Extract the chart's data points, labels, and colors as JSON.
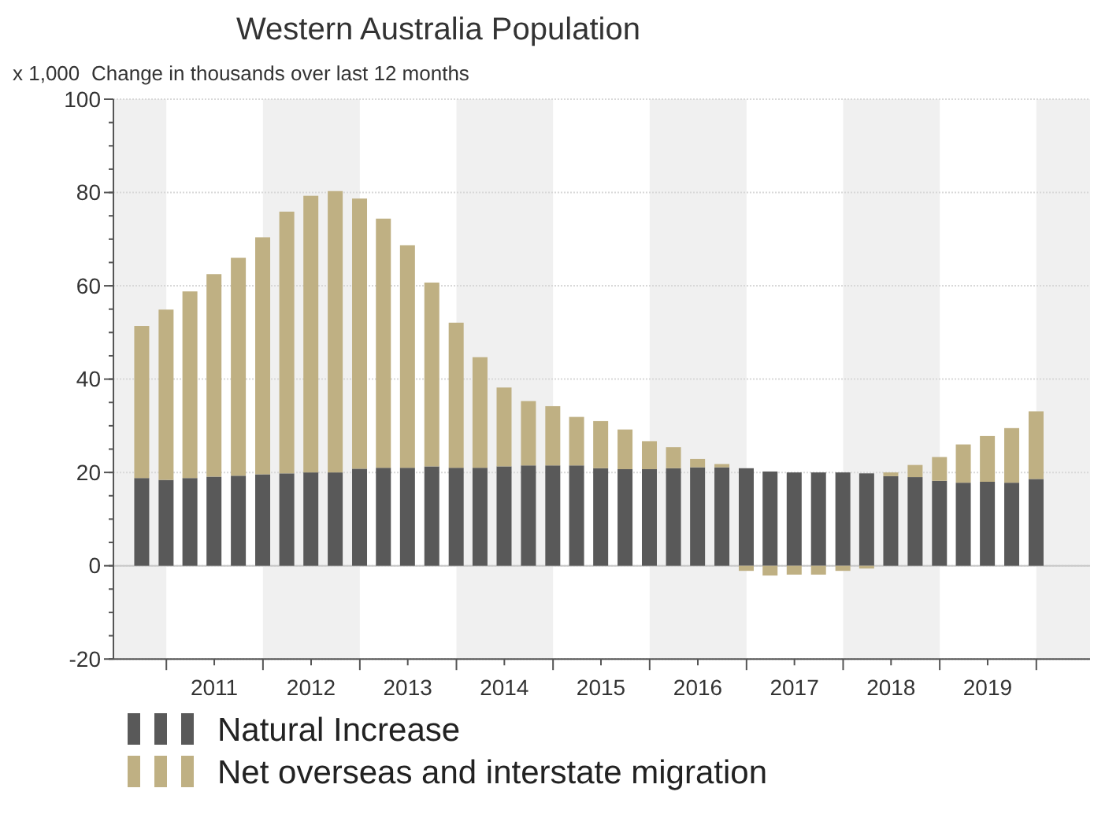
{
  "chart_data": {
    "type": "bar",
    "title": "Western Australia Population",
    "subtitle": "Change in thousands over last 12 months",
    "ylabel": "x 1,000",
    "stacked": true,
    "x": [
      "2010-09-30",
      "2010-12-31",
      "2011-03-31",
      "2011-06-30",
      "2011-09-30",
      "2011-12-31",
      "2012-03-31",
      "2012-06-30",
      "2012-09-30",
      "2012-12-31",
      "2013-03-31",
      "2013-06-30",
      "2013-09-30",
      "2013-12-31",
      "2014-03-31",
      "2014-06-30",
      "2014-09-30",
      "2014-12-31",
      "2015-03-31",
      "2015-06-30",
      "2015-09-30",
      "2015-12-31",
      "2016-03-31",
      "2016-06-30",
      "2016-09-30",
      "2016-12-31",
      "2017-03-31",
      "2017-06-30",
      "2017-09-30",
      "2017-12-31",
      "2018-03-31",
      "2018-06-30",
      "2018-09-30",
      "2018-12-31",
      "2019-03-31",
      "2019-06-30",
      "2019-09-30",
      "2019-12-31"
    ],
    "series": [
      {
        "name": "Natural Increase",
        "color": "#595959",
        "values": [
          18.8,
          18.4,
          18.8,
          19.1,
          19.3,
          19.6,
          19.8,
          20.0,
          20.0,
          20.8,
          21.0,
          21.0,
          21.3,
          21.0,
          21.0,
          21.3,
          21.5,
          21.5,
          21.5,
          20.9,
          20.7,
          20.7,
          20.9,
          21.1,
          21.1,
          20.9,
          20.2,
          20.0,
          20.0,
          20.0,
          19.8,
          19.2,
          19.0,
          18.2,
          17.8,
          18.0,
          17.8,
          18.6
        ]
      },
      {
        "name": "Net overseas and interstate migration",
        "color": "#bfb083",
        "values": [
          32.6,
          36.5,
          40.0,
          43.4,
          46.7,
          50.8,
          56.1,
          59.3,
          60.3,
          57.9,
          53.4,
          47.7,
          39.4,
          31.1,
          23.7,
          16.9,
          13.8,
          12.7,
          10.4,
          10.1,
          8.5,
          6.0,
          4.5,
          1.8,
          0.7,
          -1.1,
          -2.1,
          -1.9,
          -1.9,
          -1.1,
          -0.6,
          0.8,
          2.6,
          5.1,
          8.2,
          9.8,
          11.7,
          14.5
        ]
      }
    ],
    "xlim": [
      "2010-06-15",
      "2020-07-22"
    ],
    "xticks": [
      {
        "value": "2011-01-01",
        "label": null
      },
      {
        "value": "2011-07-01",
        "label": "2011"
      },
      {
        "value": "2012-01-01",
        "label": null
      },
      {
        "value": "2012-07-01",
        "label": "2012"
      },
      {
        "value": "2013-01-01",
        "label": null
      },
      {
        "value": "2013-07-01",
        "label": "2013"
      },
      {
        "value": "2014-01-01",
        "label": null
      },
      {
        "value": "2014-07-01",
        "label": "2014"
      },
      {
        "value": "2015-01-01",
        "label": null
      },
      {
        "value": "2015-07-01",
        "label": "2015"
      },
      {
        "value": "2016-01-01",
        "label": null
      },
      {
        "value": "2016-07-01",
        "label": "2016"
      },
      {
        "value": "2017-01-01",
        "label": null
      },
      {
        "value": "2017-07-01",
        "label": "2017"
      },
      {
        "value": "2018-01-01",
        "label": null
      },
      {
        "value": "2018-07-01",
        "label": "2018"
      },
      {
        "value": "2019-01-01",
        "label": null
      },
      {
        "value": "2019-07-01",
        "label": "2019"
      },
      {
        "value": "2020-01-01",
        "label": null
      }
    ],
    "ylim": [
      -20,
      100
    ],
    "yticks": [
      -20,
      0,
      20,
      40,
      60,
      80,
      100
    ],
    "grid": "y",
    "legend": "bottom",
    "bands": [
      {
        "axis": "x",
        "from": "2010-06-15",
        "to": "2011-01-01",
        "color": "#f0f0f0"
      },
      {
        "axis": "x",
        "from": "2012-01-01",
        "to": "2013-01-01",
        "color": "#f0f0f0"
      },
      {
        "axis": "x",
        "from": "2014-01-01",
        "to": "2015-01-01",
        "color": "#f0f0f0"
      },
      {
        "axis": "x",
        "from": "2016-01-01",
        "to": "2017-01-01",
        "color": "#f0f0f0"
      },
      {
        "axis": "x",
        "from": "2018-01-01",
        "to": "2019-01-01",
        "color": "#f0f0f0"
      },
      {
        "axis": "x",
        "from": "2020-01-01",
        "to": "2020-07-22",
        "color": "#f0f0f0"
      }
    ]
  }
}
